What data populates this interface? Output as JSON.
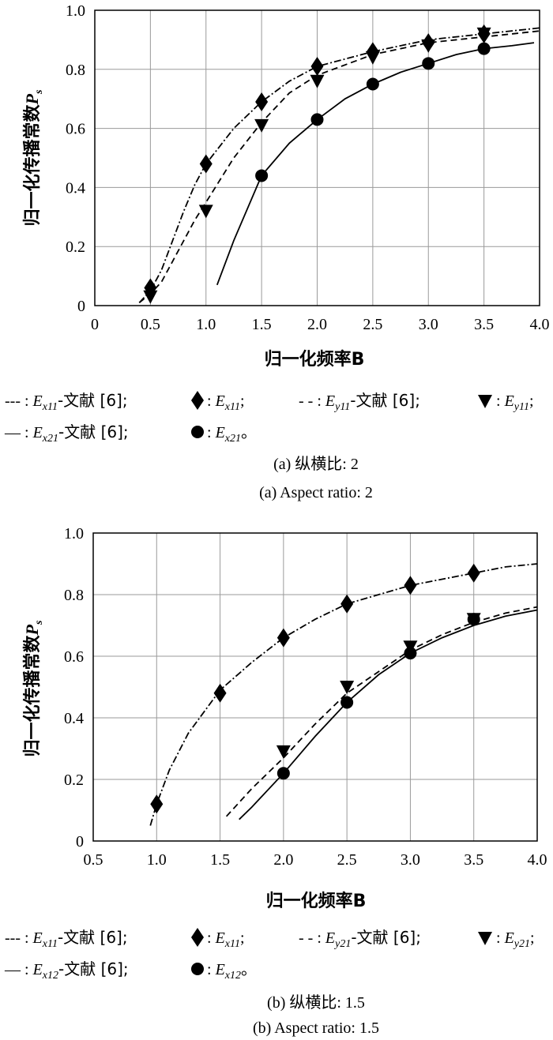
{
  "chart_data": [
    {
      "type": "line",
      "xlabel": "归一化频率B",
      "ylabel": "归一化传播常数P_s",
      "xlim": [
        0,
        4.0
      ],
      "ylim": [
        0,
        1.0
      ],
      "x_ticks": [
        "0",
        "0.5",
        "1.0",
        "1.5",
        "2.0",
        "2.5",
        "3.0",
        "3.5",
        "4.0"
      ],
      "y_ticks": [
        "0",
        "0.2",
        "0.4",
        "0.6",
        "0.8",
        "1.0"
      ],
      "grid": true,
      "series": [
        {
          "name": "E_x11-文献 [6]",
          "kind": "line",
          "style": "dashdot",
          "x": [
            0.4,
            0.5,
            0.6,
            0.7,
            0.8,
            0.9,
            1.0,
            1.25,
            1.5,
            1.75,
            2.0,
            2.5,
            3.0,
            3.5,
            4.0
          ],
          "y": [
            0.01,
            0.05,
            0.12,
            0.22,
            0.32,
            0.41,
            0.48,
            0.6,
            0.69,
            0.76,
            0.81,
            0.86,
            0.9,
            0.92,
            0.94
          ]
        },
        {
          "name": "E_x11",
          "kind": "marker",
          "marker": "diamond",
          "x": [
            0.5,
            1.0,
            1.5,
            2.0,
            2.5,
            3.0,
            3.5
          ],
          "y": [
            0.06,
            0.48,
            0.69,
            0.81,
            0.86,
            0.89,
            0.92
          ]
        },
        {
          "name": "E_y11-文献 [6]",
          "kind": "line",
          "style": "dashed",
          "x": [
            0.4,
            0.5,
            0.6,
            0.7,
            0.8,
            0.9,
            1.0,
            1.25,
            1.5,
            1.75,
            2.0,
            2.5,
            3.0,
            3.5,
            4.0
          ],
          "y": [
            0.01,
            0.04,
            0.08,
            0.15,
            0.22,
            0.29,
            0.35,
            0.5,
            0.62,
            0.72,
            0.78,
            0.85,
            0.89,
            0.91,
            0.93
          ]
        },
        {
          "name": "E_y11",
          "kind": "marker",
          "marker": "triangle-down",
          "x": [
            0.5,
            1.0,
            1.5,
            2.0,
            2.5,
            3.0,
            3.5
          ],
          "y": [
            0.03,
            0.32,
            0.61,
            0.76,
            0.84,
            0.88,
            0.92
          ]
        },
        {
          "name": "E_x21-文献 [6]",
          "kind": "line",
          "style": "solid",
          "x": [
            1.1,
            1.25,
            1.5,
            1.75,
            2.0,
            2.25,
            2.5,
            2.75,
            3.0,
            3.25,
            3.5,
            3.75,
            3.95
          ],
          "y": [
            0.07,
            0.22,
            0.44,
            0.55,
            0.63,
            0.7,
            0.75,
            0.79,
            0.82,
            0.85,
            0.87,
            0.88,
            0.89
          ]
        },
        {
          "name": "E_x21",
          "kind": "marker",
          "marker": "circle",
          "x": [
            1.5,
            2.0,
            2.5,
            3.0,
            3.5
          ],
          "y": [
            0.44,
            0.63,
            0.75,
            0.82,
            0.87
          ]
        }
      ]
    },
    {
      "type": "line",
      "xlabel": "归一化频率B",
      "ylabel": "归一化传播常数P_s",
      "xlim": [
        0.5,
        4.0
      ],
      "ylim": [
        0,
        1.0
      ],
      "x_ticks": [
        "0.5",
        "1.0",
        "1.5",
        "2.0",
        "2.5",
        "3.0",
        "3.5",
        "4.0"
      ],
      "y_ticks": [
        "0",
        "0.2",
        "0.4",
        "0.6",
        "0.8",
        "1.0"
      ],
      "grid": true,
      "series": [
        {
          "name": "E_x11-文献 [6]",
          "kind": "line",
          "style": "dashdot",
          "x": [
            0.95,
            1.0,
            1.1,
            1.25,
            1.5,
            1.75,
            2.0,
            2.25,
            2.5,
            2.75,
            3.0,
            3.25,
            3.5,
            3.75,
            4.0
          ],
          "y": [
            0.05,
            0.12,
            0.23,
            0.35,
            0.49,
            0.58,
            0.66,
            0.72,
            0.77,
            0.8,
            0.83,
            0.85,
            0.87,
            0.89,
            0.9
          ]
        },
        {
          "name": "E_x11",
          "kind": "marker",
          "marker": "diamond",
          "x": [
            1.0,
            1.5,
            2.0,
            2.5,
            3.0,
            3.5
          ],
          "y": [
            0.12,
            0.48,
            0.66,
            0.77,
            0.83,
            0.87
          ]
        },
        {
          "name": "E_y21-文献 [6]",
          "kind": "line",
          "style": "dashed",
          "x": [
            1.55,
            1.75,
            2.0,
            2.25,
            2.5,
            2.75,
            3.0,
            3.25,
            3.5,
            3.75,
            4.0
          ],
          "y": [
            0.08,
            0.17,
            0.27,
            0.38,
            0.48,
            0.55,
            0.62,
            0.67,
            0.71,
            0.74,
            0.76
          ]
        },
        {
          "name": "E_y21",
          "kind": "marker",
          "marker": "triangle-down",
          "x": [
            2.0,
            2.5,
            3.0,
            3.5
          ],
          "y": [
            0.29,
            0.5,
            0.63,
            0.72
          ]
        },
        {
          "name": "E_x12-文献 [6]",
          "kind": "line",
          "style": "solid",
          "x": [
            1.65,
            1.75,
            2.0,
            2.25,
            2.5,
            2.75,
            3.0,
            3.25,
            3.5,
            3.75,
            4.0
          ],
          "y": [
            0.07,
            0.11,
            0.22,
            0.34,
            0.45,
            0.54,
            0.61,
            0.66,
            0.7,
            0.73,
            0.75
          ]
        },
        {
          "name": "E_x12",
          "kind": "marker",
          "marker": "circle",
          "x": [
            2.0,
            2.5,
            3.0,
            3.5
          ],
          "y": [
            0.22,
            0.45,
            0.61,
            0.72
          ]
        }
      ]
    }
  ],
  "legend_a": {
    "row1": {
      "sym1": "--- : ",
      "E1": "E",
      "s1": "x11",
      "t1": "-文献 [6];",
      "sym2": " : ",
      "E2": "E",
      "s2": "x11",
      "t2": ";",
      "sym3": "- - : ",
      "E3": "E",
      "s3": "y11",
      "t3": "-文献 [6];",
      "sym4": " : ",
      "E4": "E",
      "s4": "y11",
      "t4": ";"
    },
    "row2": {
      "sym1": "— : ",
      "E1": "E",
      "s1": "x21",
      "t1": "-文献 [6];",
      "sym2": " : ",
      "E2": "E",
      "s2": "x21",
      "t2": "。"
    }
  },
  "legend_b": {
    "row1": {
      "sym1": "--- : ",
      "E1": "E",
      "s1": "x11",
      "t1": "-文献 [6];",
      "sym2": " : ",
      "E2": "E",
      "s2": "x11",
      "t2": ";",
      "sym3": "- - : ",
      "E3": "E",
      "s3": "y21",
      "t3": "-文献 [6];",
      "sym4": " : ",
      "E4": "E",
      "s4": "y21",
      "t4": ";"
    },
    "row2": {
      "sym1": "— : ",
      "E1": "E",
      "s1": "x12",
      "t1": "-文献 [6];",
      "sym2": " : ",
      "E2": "E",
      "s2": "x12",
      "t2": "。"
    }
  },
  "captions": {
    "a_cn": "(a) 纵横比: 2",
    "a_en": "(a) Aspect ratio: 2",
    "b_cn": "(b) 纵横比: 1.5",
    "b_en": "(b) Aspect ratio: 1.5"
  },
  "ylabel_parts": {
    "main": "归一化传播常数",
    "P": "P",
    "sub": "s"
  }
}
